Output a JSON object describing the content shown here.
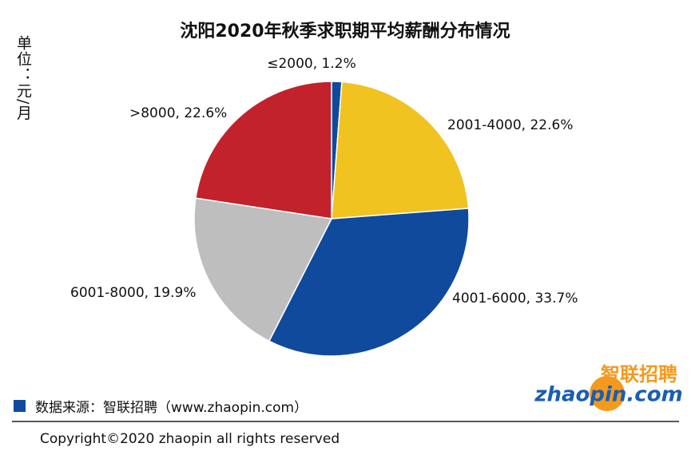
{
  "chart_data": {
    "type": "pie",
    "title": "沈阳2020年秋季求职期平均薪酬分布情况",
    "unit_label": "单位：元/月",
    "labels": [
      "≤2000, 1.2%",
      "2001-4000, 22.6%",
      "4001-6000, 33.7%",
      "6001-8000, 19.9%",
      ">8000, 22.6%"
    ],
    "values": [
      1.2,
      22.6,
      33.7,
      19.9,
      22.6
    ],
    "colors": [
      "#0f4a9c",
      "#f0c321",
      "#0f4a9c",
      "#bebebe",
      "#c1222c"
    ],
    "source": "数据来源：智联招聘（www.zhaopin.com）",
    "footer": "Copyright©2020 zhaopin all rights reserved",
    "logo_cn": "智联招聘",
    "logo_en": "zhaopin.com"
  }
}
